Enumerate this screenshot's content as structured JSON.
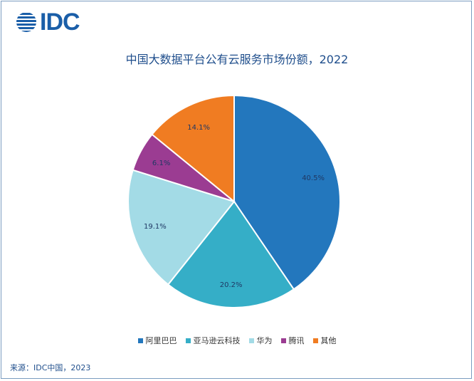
{
  "logo": {
    "text": "IDC"
  },
  "chart_data": {
    "type": "pie",
    "title": "中国大数据平台公有云服务市场份额，2022",
    "categories": [
      "阿里巴巴",
      "亚马逊云科技",
      "华为",
      "腾讯",
      "其他"
    ],
    "values": [
      40.5,
      20.2,
      19.1,
      6.1,
      14.1
    ],
    "value_labels": [
      "40.5%",
      "20.2%",
      "19.1%",
      "6.1%",
      "14.1%"
    ],
    "colors": [
      "#2377bd",
      "#35aec7",
      "#a3dbe6",
      "#9b3c92",
      "#f07c22"
    ],
    "start": "12 o'clock, clockwise",
    "legend_position": "bottom"
  },
  "source": "来源：IDC中国，2023"
}
